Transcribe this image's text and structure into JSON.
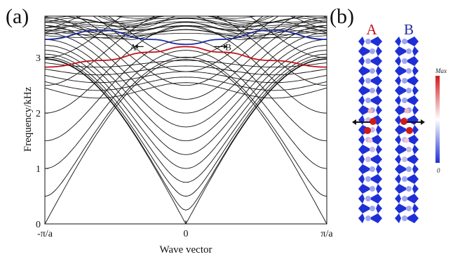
{
  "panel_a_label": "(a)",
  "panel_b_label": "(b)",
  "chart_data": {
    "type": "line",
    "xlabel": "Wave vector",
    "ylabel": "Frequency/kHz",
    "xlim": [
      -1,
      1
    ],
    "ylim": [
      0,
      3.75
    ],
    "x_tick_labels": [
      "-π/a",
      "0",
      "π/a"
    ],
    "y_ticks": [
      0,
      1,
      2,
      3
    ],
    "grid": false,
    "bulk_bands": {
      "description_color": "#000000",
      "acoustic_mode_count": 12,
      "upper_dense_band_range_kHz": [
        3.35,
        3.75
      ]
    },
    "series": [
      {
        "name": "A",
        "color": "#c0141c",
        "points": [
          [
            -1,
            2.83
          ],
          [
            -0.6,
            2.95
          ],
          [
            -0.25,
            3.1
          ],
          [
            0,
            3.2
          ],
          [
            0.25,
            3.1
          ],
          [
            0.6,
            2.95
          ],
          [
            1,
            2.83
          ]
        ]
      },
      {
        "name": "B",
        "color": "#1e2a9e",
        "points": [
          [
            -1,
            3.33
          ],
          [
            -0.6,
            3.5
          ],
          [
            -0.25,
            3.33
          ],
          [
            0,
            3.24
          ],
          [
            0.25,
            3.33
          ],
          [
            0.6,
            3.5
          ],
          [
            1,
            3.33
          ]
        ]
      }
    ],
    "annotations": [
      {
        "text": "A",
        "x": -0.3,
        "y": 3.2,
        "arrow": "left"
      },
      {
        "text": "B",
        "x": 0.2,
        "y": 3.2,
        "arrow": "right"
      }
    ]
  },
  "panel_b": {
    "mode_labels": [
      {
        "text": "A",
        "color": "#c0141c"
      },
      {
        "text": "B",
        "color": "#1e2a9e"
      }
    ],
    "colorbar": {
      "max_label": "Max",
      "min_label": "0",
      "top_color": "#d11a1a",
      "mid_color": "#ffffff",
      "bottom_color": "#1f2fd6"
    }
  }
}
